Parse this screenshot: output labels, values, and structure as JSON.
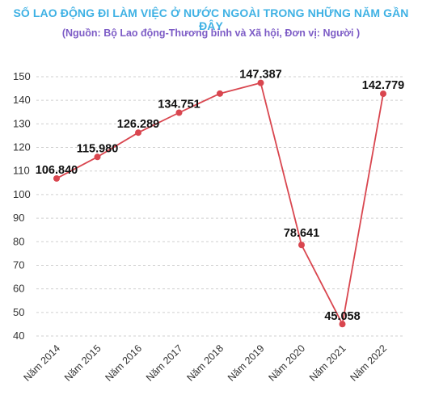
{
  "chart_data": {
    "type": "line",
    "title": "SỐ LAO ĐỘNG ĐI LÀM VIỆC Ở NƯỚC NGOÀI TRONG NHỮNG NĂM GẦN ĐÂY",
    "subtitle": "(Nguồn: Bộ Lao động-Thương binh và Xã hội, Đơn vị: Người )",
    "categories": [
      "Năm 2014",
      "Năm 2015",
      "Năm 2016",
      "Năm 2017",
      "Năm 2018",
      "Năm 2019",
      "Năm 2020",
      "Năm 2021",
      "Năm 2022"
    ],
    "series": [
      {
        "values": [
          106.84,
          115.98,
          126.289,
          134.751,
          142.86,
          147.387,
          78.641,
          45.058,
          142.779
        ],
        "labels": [
          "106.840",
          "115.980",
          "126.289",
          "134.751",
          "",
          "147.387",
          "78.641",
          "45.058",
          "142.779"
        ]
      }
    ],
    "yticks": [
      "40",
      "50",
      "60",
      "70",
      "80",
      "90",
      "100",
      "110",
      "120",
      "130",
      "140",
      "150"
    ],
    "ylim": [
      40,
      150
    ],
    "grid": "horizontal-dashed",
    "legend": "none",
    "colors": {
      "line": "#d9464f",
      "marker": "#d9464f",
      "grid": "#cfcfcf"
    }
  }
}
